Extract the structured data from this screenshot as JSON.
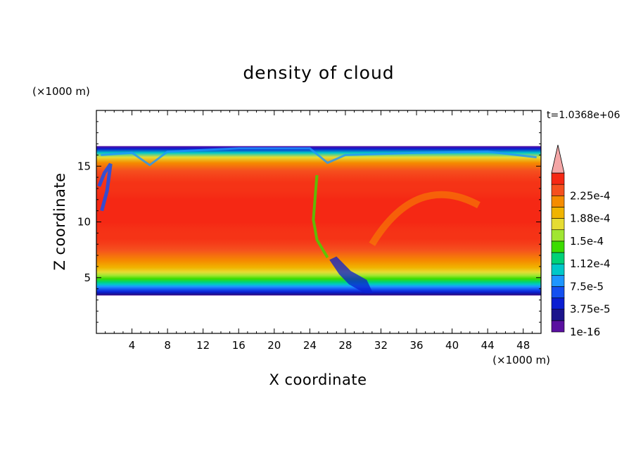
{
  "chart_data": {
    "type": "heatmap",
    "title": "density of cloud",
    "xlabel": "X coordinate",
    "ylabel": "Z coordinate",
    "x_unit": "(×1000 m)",
    "y_unit": "(×1000 m)",
    "time_label": "t=1.0368e+06",
    "xlim": [
      0,
      50
    ],
    "ylim": [
      0,
      20
    ],
    "x_ticks": [
      "4",
      "8",
      "12",
      "16",
      "20",
      "24",
      "28",
      "32",
      "36",
      "40",
      "44",
      "48"
    ],
    "y_ticks": [
      "5",
      "10",
      "15"
    ],
    "colorbar": {
      "labels": [
        "2.25e-4",
        "1.88e-4",
        "1.5e-4",
        "1.12e-4",
        "7.5e-5",
        "3.75e-5",
        "1e-16"
      ],
      "levels": [
        1e-16,
        1.875e-05,
        3.75e-05,
        5.625e-05,
        7.5e-05,
        9.375e-05,
        0.0001125,
        0.00013125,
        0.00015,
        0.00016875,
        0.0001875,
        0.00020625,
        0.000225,
        0.00024375
      ],
      "colors": [
        "#5a10a0",
        "#1c148c",
        "#0a1ed2",
        "#1450f0",
        "#1e96ff",
        "#00c8c8",
        "#00d278",
        "#3cdc00",
        "#a0e632",
        "#e6dc32",
        "#f0b400",
        "#f58c00",
        "#f5501e",
        "#f52814"
      ],
      "overflow_color": "#f4a6a6",
      "extend": "max"
    },
    "cloud_layer": {
      "base_z": 3.4,
      "top_z": 16.8,
      "core_range_z": [
        8.5,
        13.5
      ],
      "max_density": "2.25e-4"
    }
  }
}
